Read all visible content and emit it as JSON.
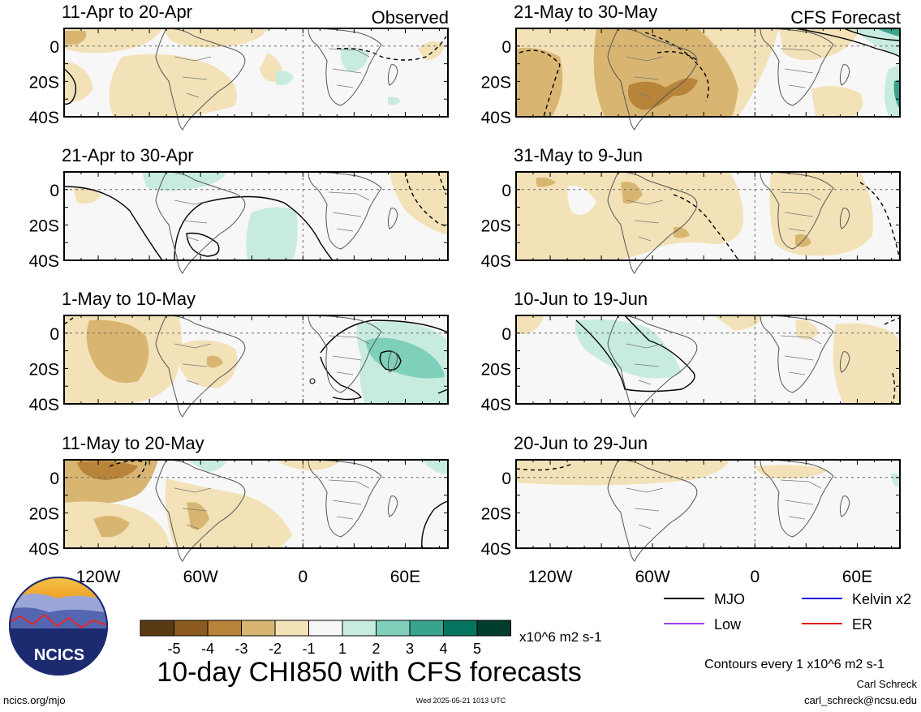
{
  "chart_data": {
    "type": "heatmap",
    "title": "10-day CHI850 with CFS forecasts",
    "units": "x10^6 m2 s-1",
    "contour_note": "Contours every 1 x10^6 m2 s-1",
    "ylabels": [
      "0",
      "20S",
      "40S"
    ],
    "xlabels": [
      "120W",
      "60W",
      "0",
      "60E"
    ],
    "observed_label": "Observed",
    "forecast_label": "CFS Forecast",
    "colorbar": {
      "labels": [
        "-5",
        "-4",
        "-3",
        "-2",
        "-1",
        "1",
        "2",
        "3",
        "4",
        "5"
      ],
      "colors": [
        "#5a3a12",
        "#8c5a1e",
        "#b8843a",
        "#d8b672",
        "#f3e2b8",
        "#f7f7f7",
        "#c8ebe0",
        "#7fd0bb",
        "#3aa38e",
        "#087561",
        "#003d2e"
      ]
    },
    "legend": [
      {
        "name": "MJO",
        "color": "#000000"
      },
      {
        "name": "Kelvin x2",
        "color": "#1f1fd6"
      },
      {
        "name": "Low",
        "color": "#a040f0"
      },
      {
        "name": "ER",
        "color": "#e01b1b"
      }
    ],
    "panels": [
      {
        "title": "11-Apr to 20-Apr",
        "kind": "observed"
      },
      {
        "title": "21-Apr to 30-Apr",
        "kind": "observed"
      },
      {
        "title": "1-May to 10-May",
        "kind": "observed"
      },
      {
        "title": "11-May to 20-May",
        "kind": "observed"
      },
      {
        "title": "21-May to 30-May",
        "kind": "forecast"
      },
      {
        "title": "31-May to 9-Jun",
        "kind": "forecast"
      },
      {
        "title": "10-Jun to 19-Jun",
        "kind": "forecast"
      },
      {
        "title": "20-Jun to 29-Jun",
        "kind": "forecast"
      }
    ]
  },
  "footer": {
    "logo_text": "NCICS",
    "site": "ncics.org/mjo",
    "timestamp": "Wed 2025-05-21 1013 UTC",
    "author": "Carl Schreck",
    "email": "carl_schreck@ncsu.edu"
  }
}
